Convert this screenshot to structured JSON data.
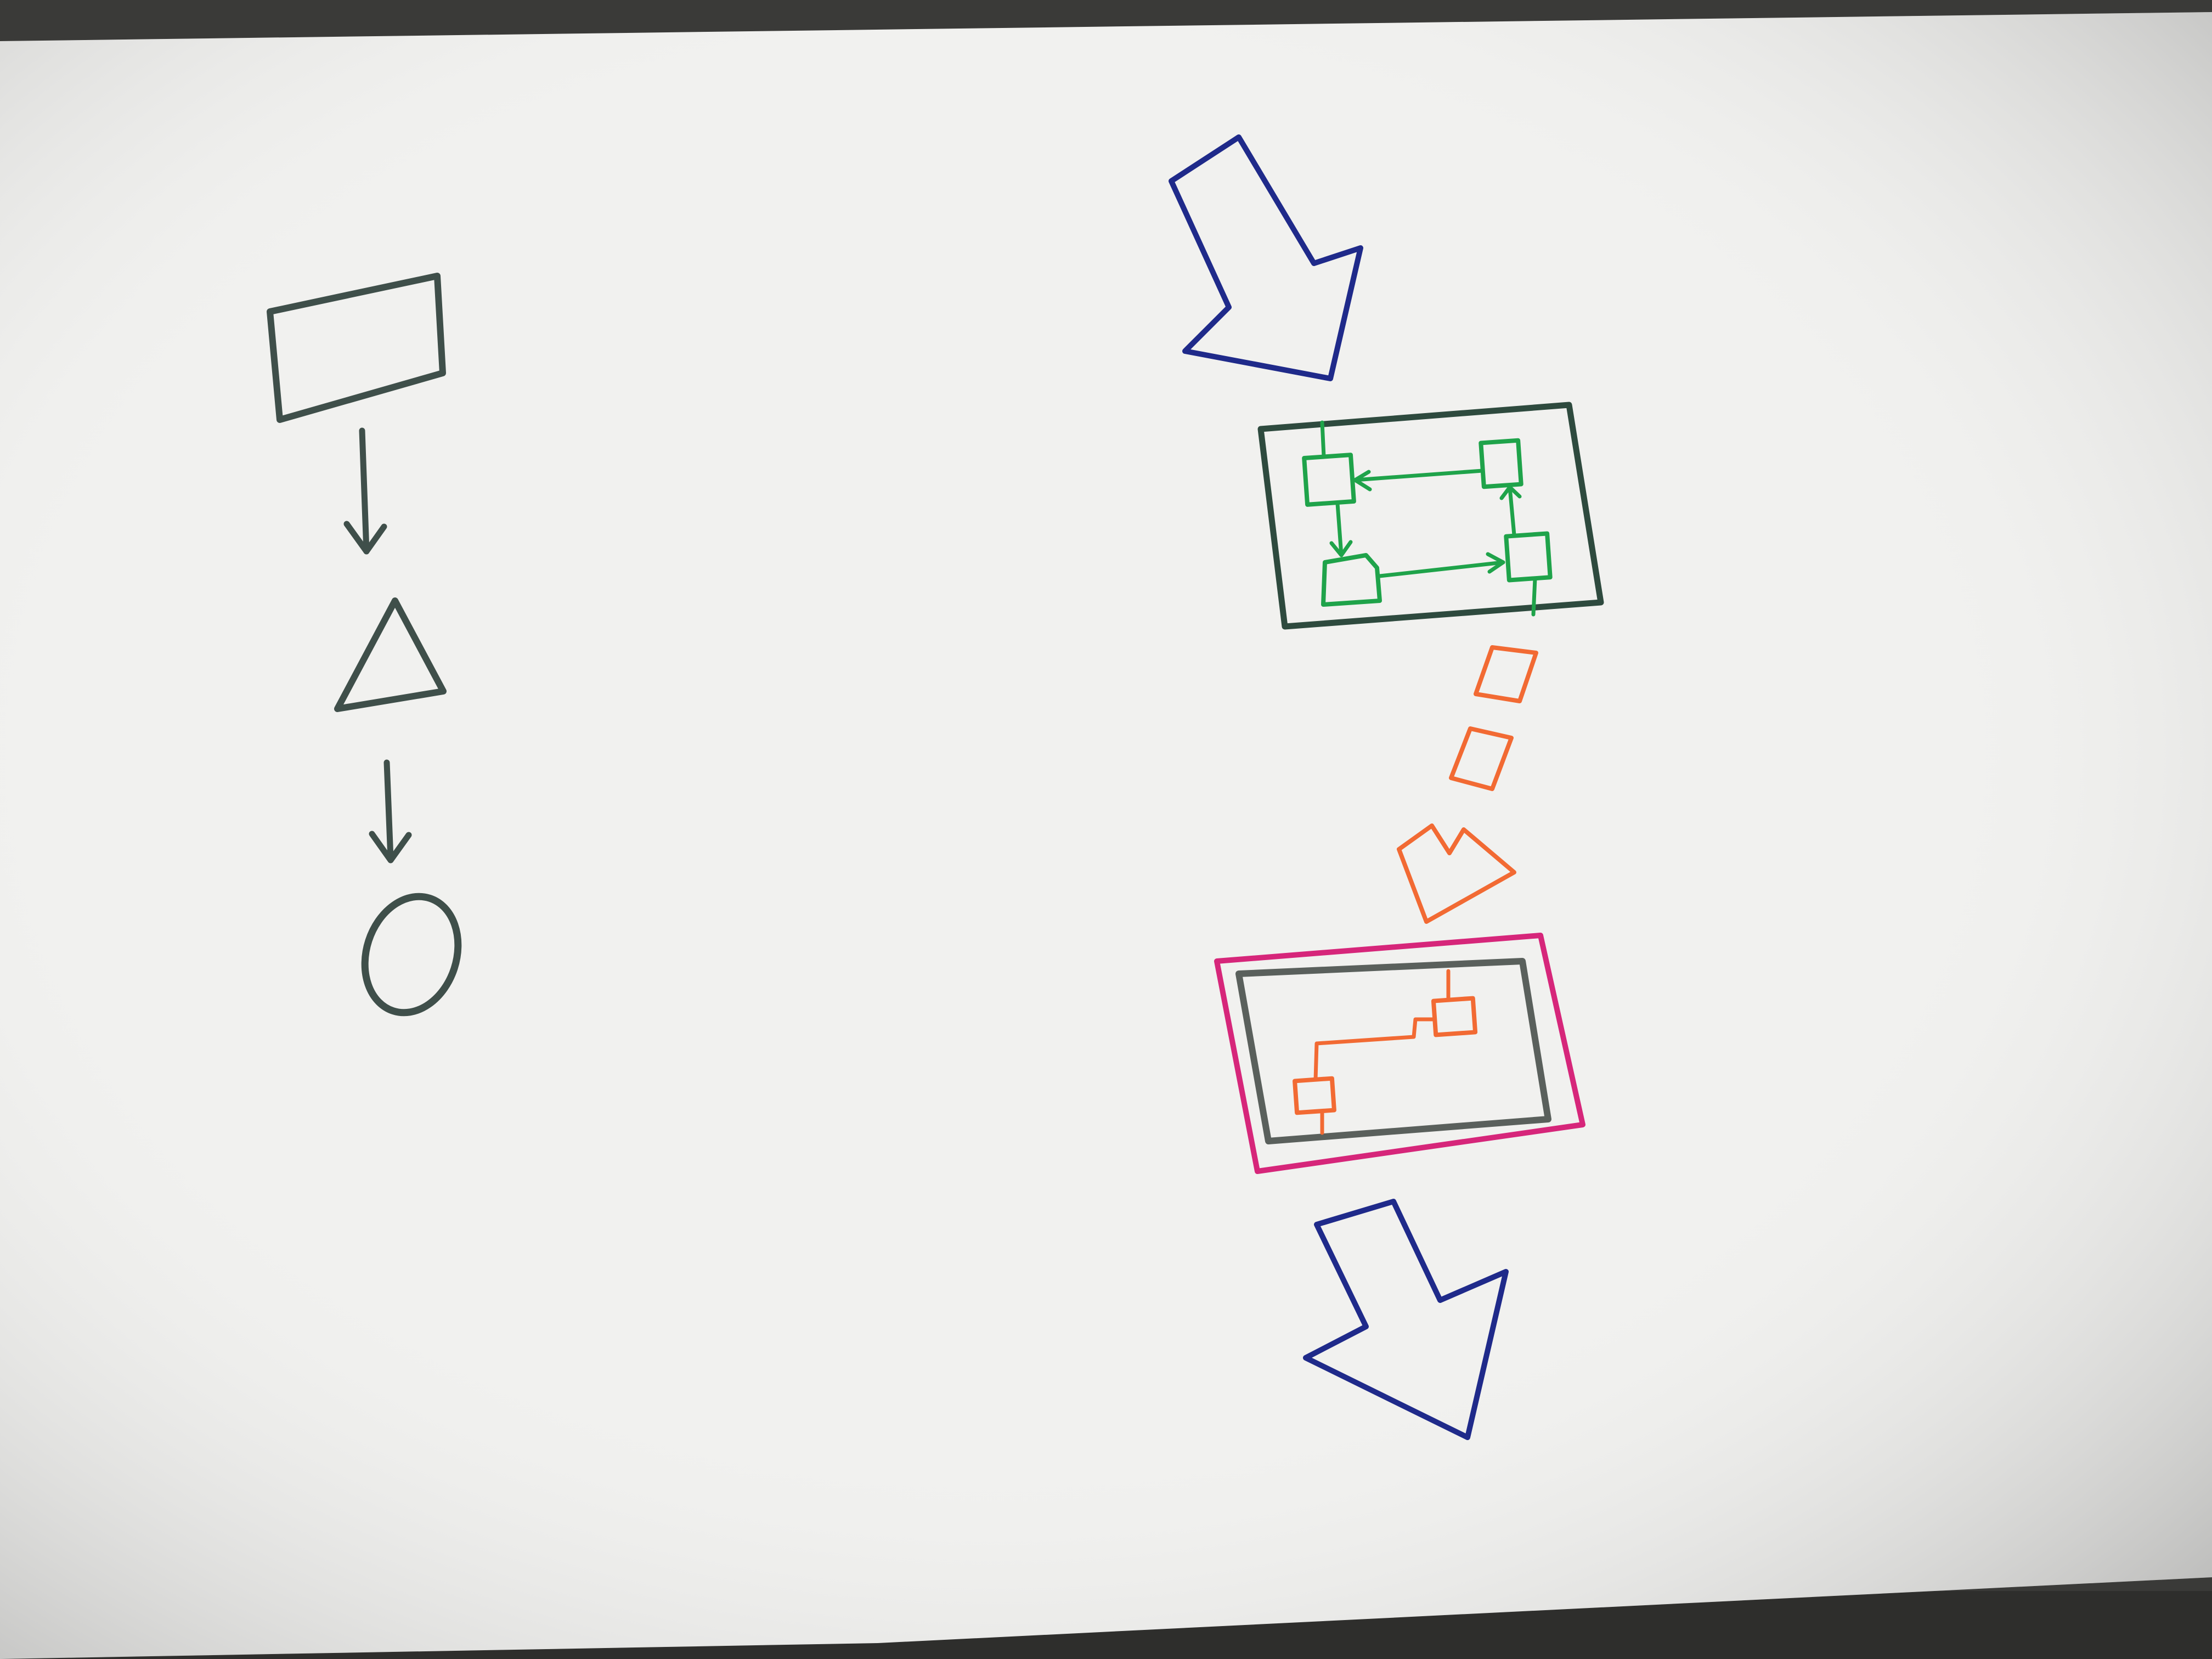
{
  "colors": {
    "background": "#3a3a38",
    "paper": "#f1f1ef",
    "paper_shade": "#c9c9c5",
    "marker_gray": "#3f4f4a",
    "marker_navy": "#1f2a8a",
    "marker_dark_green": "#2e4a3e",
    "marker_green": "#1fa34a",
    "marker_orange": "#f26a33",
    "marker_magenta": "#d6267a",
    "marker_dark_gray": "#5a605c"
  },
  "left_flow": {
    "steps": [
      {
        "shape": "rectangle",
        "icon": "rectangle-icon"
      },
      {
        "shape": "triangle",
        "icon": "triangle-icon"
      },
      {
        "shape": "circle",
        "icon": "circle-icon"
      }
    ],
    "connector": "down-arrow-icon"
  },
  "right_flow": {
    "input_arrow": "block-arrow-icon",
    "component_box": {
      "nodes": 4,
      "connector_style": "arrows",
      "border_color": "marker_dark_green",
      "node_color": "marker_green"
    },
    "transfer": {
      "packets": 2,
      "arrow": "orange-block-arrow-icon",
      "color": "marker_orange"
    },
    "output_box": {
      "outer_border": "marker_magenta",
      "inner_border": "marker_dark_gray",
      "nodes": 2,
      "node_color": "marker_orange"
    },
    "output_arrow": "block-arrow-icon"
  }
}
